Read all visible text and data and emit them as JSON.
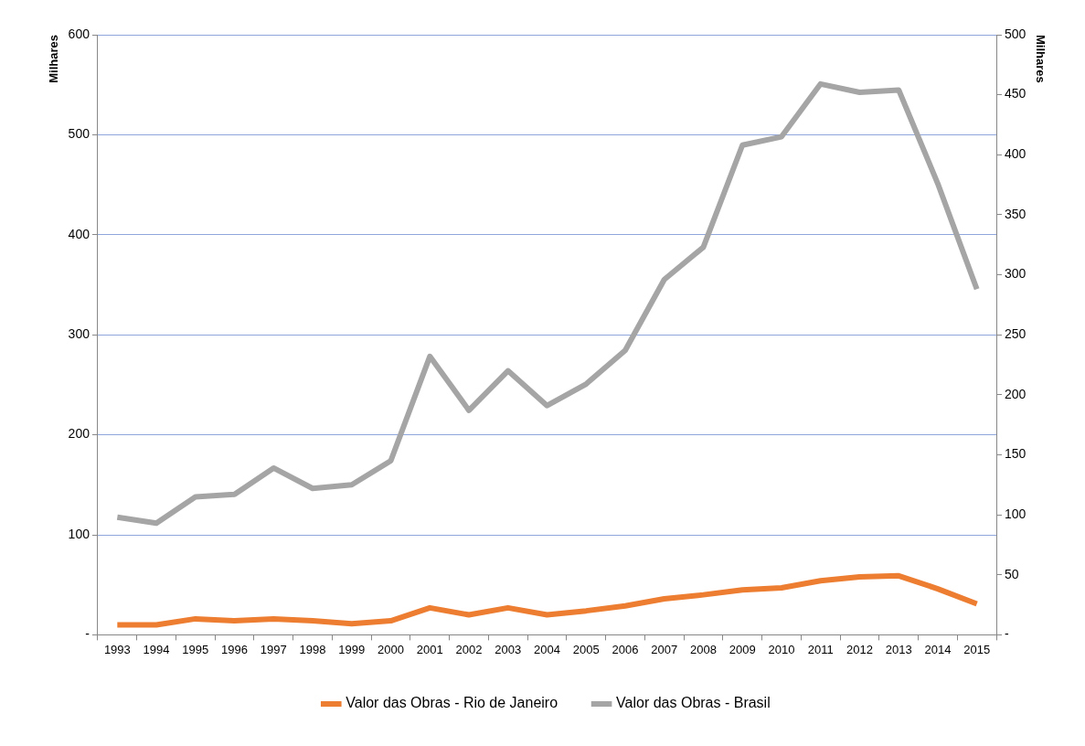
{
  "chart_data": {
    "type": "line",
    "ylabel": "Milhares",
    "y2label": "Milhares",
    "categories": [
      "1993",
      "1994",
      "1995",
      "1996",
      "1997",
      "1998",
      "1999",
      "2000",
      "2001",
      "2002",
      "2003",
      "2004",
      "2005",
      "2006",
      "2007",
      "2008",
      "2009",
      "2010",
      "2011",
      "2012",
      "2013",
      "2014",
      "2015"
    ],
    "series": [
      {
        "name": "Valor das Obras - Rio de Janeiro",
        "color": "#ed7d31",
        "values": [
          10,
          10,
          16,
          14,
          16,
          14,
          11,
          14,
          27,
          20,
          27,
          20,
          24,
          29,
          36,
          40,
          45,
          47,
          54,
          58,
          59,
          46,
          31
        ]
      },
      {
        "name": "Valor das Obras - Brasil",
        "color": "#a5a5a5",
        "axis": "y2",
        "values": [
          98,
          93,
          115,
          117,
          139,
          122,
          125,
          145,
          232,
          187,
          220,
          191,
          209,
          237,
          296,
          323,
          408,
          415,
          459,
          452,
          454,
          376,
          288
        ]
      }
    ],
    "ylim": [
      0,
      600
    ],
    "yticks": [
      {
        "value": 0,
        "label": "-"
      },
      100,
      200,
      300,
      400,
      500,
      600
    ],
    "y2lim": [
      0,
      500
    ],
    "y2ticks": [
      {
        "value": 0,
        "label": "-"
      },
      50,
      100,
      150,
      200,
      250,
      300,
      350,
      400,
      450,
      500
    ],
    "grid": "y",
    "legend": "bottom",
    "marker": "none",
    "line_style": "solid"
  }
}
